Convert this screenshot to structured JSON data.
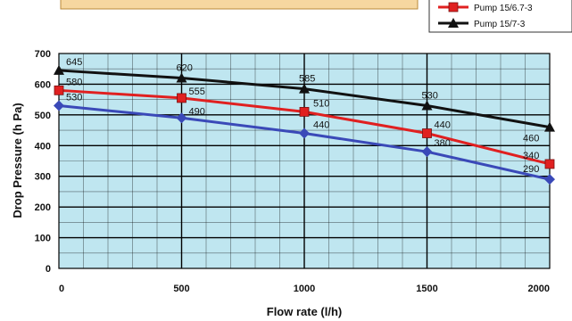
{
  "chart_data": {
    "type": "line",
    "title": "",
    "xlabel": "Flow rate (l/h)",
    "ylabel": "Drop Pressure (h Pa)",
    "x": [
      0,
      500,
      1000,
      1500,
      2000
    ],
    "xlim": [
      0,
      2000
    ],
    "ylim": [
      0,
      700
    ],
    "xticks": [
      0,
      500,
      1000,
      1500,
      2000
    ],
    "yticks": [
      0,
      100,
      200,
      300,
      400,
      500,
      600,
      700
    ],
    "grid": true,
    "legend_position": "top-right",
    "series": [
      {
        "name": "Pump 15/7-3",
        "values": [
          645,
          620,
          585,
          530,
          460
        ],
        "color": "#111111",
        "marker": "triangle",
        "labeled": true
      },
      {
        "name": "Pump 15/6.7-3",
        "values": [
          580,
          555,
          510,
          440,
          340
        ],
        "color": "#e02020",
        "marker": "square",
        "labeled": true
      },
      {
        "name": "",
        "values": [
          530,
          490,
          440,
          380,
          290
        ],
        "color": "#3a49b8",
        "marker": "diamond",
        "labeled": true
      }
    ]
  }
}
